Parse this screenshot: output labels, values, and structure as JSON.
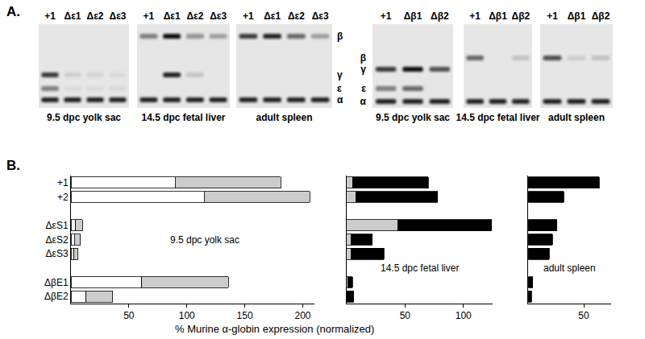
{
  "panel_a": {
    "label": "A.",
    "groups": [
      {
        "band_labels": [
          "β",
          "γ",
          "ε",
          "α"
        ],
        "panels": [
          {
            "tissue": "9.5 dpc yolk sac",
            "lanes": [
              "+1",
              "Δε1",
              "Δε2",
              "Δε3"
            ],
            "bands": [
              [
                0,
                0,
                0,
                0
              ],
              [
                0.8,
                0.1,
                0.08,
                0.05
              ],
              [
                0.5,
                0.05,
                0.05,
                0.05
              ],
              [
                0.9,
                0.9,
                0.9,
                0.9
              ]
            ]
          },
          {
            "tissue": "14.5 dpc fetal liver",
            "lanes": [
              "+1",
              "Δε1",
              "Δε2",
              "Δε3"
            ],
            "bands": [
              [
                0.5,
                1.0,
                0.4,
                0.3
              ],
              [
                0,
                0.9,
                0.15,
                0
              ],
              [
                0,
                0,
                0,
                0
              ],
              [
                0.9,
                0.9,
                0.9,
                0.9
              ]
            ]
          },
          {
            "tissue": "adult spleen",
            "lanes": [
              "+1",
              "Δε1",
              "Δε2",
              "Δε3"
            ],
            "bands": [
              [
                0.8,
                0.9,
                0.6,
                0.3
              ],
              [
                0,
                0,
                0,
                0
              ],
              [
                0,
                0,
                0,
                0
              ],
              [
                0.9,
                0.9,
                0.9,
                0.9
              ]
            ]
          }
        ]
      },
      {
        "band_labels": [
          "β",
          "γ",
          "ε",
          "α"
        ],
        "panels": [
          {
            "tissue": "9.5 dpc yolk sac",
            "lanes": [
              "+1",
              "Δβ1",
              "Δβ2"
            ],
            "bands": [
              [
                0,
                0,
                0
              ],
              [
                0.8,
                1.0,
                0.7
              ],
              [
                0.5,
                0.6,
                0
              ],
              [
                0.9,
                0.9,
                0.9
              ]
            ]
          },
          {
            "tissue": "14.5 dpc fetal liver",
            "lanes": [
              "+1",
              "Δβ1",
              "Δβ2"
            ],
            "bands": [
              [
                0.6,
                0,
                0.15
              ],
              [
                0,
                0,
                0
              ],
              [
                0,
                0,
                0
              ],
              [
                0.9,
                0.9,
                0.9
              ]
            ]
          },
          {
            "tissue": "adult spleen",
            "lanes": [
              "+1",
              "Δβ1",
              "Δβ2"
            ],
            "bands": [
              [
                0.7,
                0.1,
                0.15
              ],
              [
                0,
                0,
                0
              ],
              [
                0,
                0,
                0
              ],
              [
                0.9,
                0.9,
                0.9
              ]
            ]
          }
        ]
      }
    ]
  },
  "panel_b_label": "B.",
  "chart_data": [
    {
      "type": "bar",
      "orientation": "horizontal",
      "stacked": true,
      "grid": false,
      "title": "9.5 dpc yolk sac",
      "categories": [
        "+1",
        "+2",
        null,
        "ΔεS1",
        "ΔεS2",
        "ΔεS3",
        null,
        "ΔβE1",
        "ΔβE2"
      ],
      "series": [
        {
          "color": "#ffffff",
          "values": [
            90,
            115,
            null,
            4,
            3,
            2.5,
            null,
            61,
            13
          ]
        },
        {
          "color": "#cccccc",
          "values": [
            91,
            91,
            null,
            6,
            5,
            3.5,
            null,
            75,
            23
          ]
        }
      ],
      "xlim": [
        0,
        210
      ],
      "xticks": [
        50,
        100,
        150,
        200
      ]
    },
    {
      "type": "bar",
      "orientation": "horizontal",
      "stacked": true,
      "grid": false,
      "title": "14.5 dpc fetal liver",
      "xlabel": "% Murine α-globin expression (normalized)",
      "tick_labels": "x",
      "categories": [
        "+1",
        "+2",
        null,
        "ΔεS1",
        "ΔεS2",
        "ΔεS3",
        null,
        "ΔβE1",
        "ΔβE2"
      ],
      "series": [
        {
          "color": "#cccccc",
          "values": [
            5,
            8,
            null,
            44,
            4,
            4,
            null,
            1,
            0
          ]
        },
        {
          "color": "#000000",
          "values": [
            65,
            70,
            null,
            80,
            18,
            28,
            null,
            4,
            6
          ]
        }
      ],
      "xlim": [
        0,
        125
      ],
      "xticks": [
        50,
        100
      ]
    },
    {
      "type": "bar",
      "orientation": "horizontal",
      "stacked": true,
      "grid": false,
      "title": "adult spleen",
      "tick_labels": "x",
      "categories": [
        "+1",
        "+2",
        null,
        "ΔεS1",
        "ΔεS2",
        "ΔεS3",
        null,
        "ΔβE1",
        "ΔβE2"
      ],
      "series": [
        {
          "color": "#000000",
          "values": [
            64,
            32,
            null,
            26,
            22,
            19,
            null,
            4,
            3
          ]
        }
      ],
      "xlim": [
        0,
        75
      ],
      "xticks": [
        50
      ]
    }
  ]
}
